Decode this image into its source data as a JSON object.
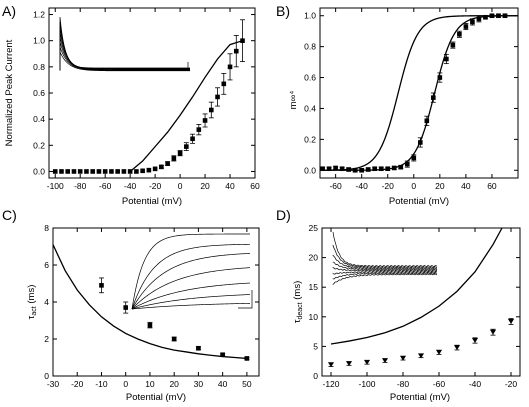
{
  "chart_data": [
    {
      "panel_label": "A)",
      "type": "scatter",
      "xlabel": "Potential (mV)",
      "ylabel": "Normalized Peak Current",
      "xlim": [
        -105,
        60
      ],
      "ylim": [
        -0.05,
        1.25
      ],
      "xticks": [
        -100,
        -80,
        -60,
        -40,
        -20,
        0,
        20,
        40,
        60
      ],
      "yticks": [
        0.0,
        0.2,
        0.4,
        0.6,
        0.8,
        1.0,
        1.2
      ],
      "tick_labels_x": [
        "-100",
        "-80",
        "-60",
        "-40",
        "-20",
        "0",
        "20",
        "40",
        "60"
      ],
      "tick_labels_y": [
        "0.0",
        "0.2",
        "0.4",
        "0.6",
        "0.8",
        "1.0",
        "1.2"
      ],
      "series": [
        {
          "marker": "square",
          "x": [
            -100,
            -95,
            -90,
            -85,
            -80,
            -75,
            -70,
            -65,
            -60,
            -55,
            -50,
            -45,
            -40,
            -35,
            -30,
            -25,
            -20,
            -15,
            -10,
            -5,
            0,
            5,
            10,
            15,
            20,
            25,
            30,
            35,
            40,
            45,
            50
          ],
          "y": [
            0,
            0,
            0,
            0,
            0,
            0,
            0,
            0,
            0,
            0,
            0,
            0,
            0,
            0,
            0.005,
            0.01,
            0.02,
            0.035,
            0.06,
            0.1,
            0.14,
            0.19,
            0.25,
            0.32,
            0.39,
            0.47,
            0.57,
            0.67,
            0.8,
            0.92,
            1.0
          ],
          "err": [
            0,
            0,
            0,
            0,
            0,
            0,
            0,
            0,
            0,
            0,
            0,
            0,
            0,
            0,
            0,
            0,
            0,
            0.01,
            0.015,
            0.02,
            0.02,
            0.03,
            0.035,
            0.04,
            0.05,
            0.06,
            0.07,
            0.08,
            0.1,
            0.12,
            0.16
          ]
        },
        {
          "style": "line",
          "x": [
            -40,
            -30,
            -20,
            -10,
            0,
            10,
            20,
            30,
            40,
            50
          ],
          "y": [
            0,
            0.08,
            0.19,
            0.3,
            0.43,
            0.57,
            0.72,
            0.86,
            0.97,
            1.0
          ]
        }
      ]
    },
    {
      "panel_label": "B)",
      "type": "scatter",
      "xlabel": "Potential (mV)",
      "ylabel": "m∞⁴",
      "xlim": [
        -72,
        80
      ],
      "ylim": [
        -0.05,
        1.05
      ],
      "xticks": [
        -60,
        -40,
        -20,
        0,
        20,
        40,
        60
      ],
      "yticks": [
        0.0,
        0.2,
        0.4,
        0.6,
        0.8,
        1.0
      ],
      "tick_labels_x": [
        "-60",
        "-40",
        "-20",
        "0",
        "20",
        "40",
        "60"
      ],
      "tick_labels_y": [
        "0.0",
        "0.2",
        "0.4",
        "0.6",
        "0.8",
        "1.0"
      ],
      "series": [
        {
          "marker": "square",
          "x": [
            -70,
            -65,
            -60,
            -55,
            -50,
            -45,
            -40,
            -35,
            -30,
            -25,
            -20,
            -15,
            -10,
            -5,
            0,
            5,
            10,
            15,
            20,
            25,
            30,
            35,
            40,
            45,
            50,
            55,
            60,
            65,
            70
          ],
          "y": [
            0.01,
            0.01,
            0.015,
            0.01,
            0.005,
            0.0,
            0.0,
            0.005,
            0.01,
            0.01,
            0.01,
            0.015,
            0.02,
            0.04,
            0.08,
            0.18,
            0.32,
            0.47,
            0.6,
            0.72,
            0.81,
            0.88,
            0.93,
            0.96,
            0.98,
            0.99,
            1.0,
            1.0,
            1.0
          ],
          "err": [
            0.01,
            0.01,
            0.01,
            0.01,
            0.01,
            0.01,
            0.01,
            0.01,
            0.01,
            0.01,
            0.01,
            0.01,
            0.01,
            0.02,
            0.02,
            0.03,
            0.03,
            0.03,
            0.03,
            0.03,
            0.02,
            0.02,
            0.02,
            0.02,
            0.02,
            0.01,
            0.01,
            0.01,
            0.01
          ]
        },
        {
          "style": "line",
          "midpoint": -12,
          "slope": 7.5,
          "x_from": -72,
          "x_to": 80
        },
        {
          "style": "line",
          "midpoint": 16,
          "slope": 7.5,
          "x_from": -72,
          "x_to": 80
        }
      ]
    },
    {
      "panel_label": "C)",
      "type": "scatter",
      "xlabel": "Potential (mV)",
      "ylabel": "τact (ms)",
      "ylabel_main": "τ",
      "ylabel_sub": "act",
      "ylabel_unit": " (ms)",
      "xlim": [
        -30,
        55
      ],
      "ylim": [
        0,
        8
      ],
      "xticks": [
        -30,
        -20,
        -10,
        0,
        10,
        20,
        30,
        40,
        50
      ],
      "yticks": [
        0,
        2,
        4,
        6,
        8
      ],
      "tick_labels_x": [
        "-30",
        "-20",
        "-10",
        "0",
        "10",
        "20",
        "30",
        "40",
        "50"
      ],
      "tick_labels_y": [
        "0",
        "2",
        "4",
        "6",
        "8"
      ],
      "series": [
        {
          "marker": "square",
          "x": [
            -10,
            0,
            10,
            20,
            30,
            40,
            50
          ],
          "y": [
            4.9,
            3.7,
            2.75,
            2.0,
            1.5,
            1.15,
            0.95
          ],
          "err": [
            0.4,
            0.3,
            0.15,
            0.1,
            0.08,
            0.06,
            0.05
          ]
        },
        {
          "style": "line",
          "x": [
            -30,
            -25,
            -20,
            -15,
            -10,
            -5,
            0,
            5,
            10,
            15,
            20,
            25,
            30,
            35,
            40,
            45,
            50
          ],
          "y": [
            7.1,
            5.7,
            4.65,
            3.85,
            3.2,
            2.7,
            2.3,
            2.0,
            1.75,
            1.55,
            1.4,
            1.3,
            1.2,
            1.12,
            1.05,
            1.0,
            0.95
          ]
        }
      ]
    },
    {
      "panel_label": "D)",
      "type": "scatter",
      "xlabel": "Potential (mV)",
      "ylabel": "τdeact (ms)",
      "ylabel_main": "τ",
      "ylabel_sub": "deact",
      "ylabel_unit": " (ms)",
      "xlim": [
        -125,
        -15
      ],
      "ylim": [
        0,
        25
      ],
      "xticks": [
        -120,
        -100,
        -80,
        -60,
        -40,
        -20
      ],
      "yticks": [
        0,
        5,
        10,
        15,
        20,
        25
      ],
      "tick_labels_x": [
        "-120",
        "-100",
        "-80",
        "-60",
        "-40",
        "-20"
      ],
      "tick_labels_y": [
        "0",
        "5",
        "10",
        "15",
        "20",
        "25"
      ],
      "series": [
        {
          "marker": "triangle-down",
          "x": [
            -120,
            -110,
            -100,
            -90,
            -80,
            -70,
            -60,
            -50,
            -40,
            -30,
            -20
          ],
          "y": [
            1.9,
            2.1,
            2.3,
            2.6,
            3.0,
            3.4,
            4.0,
            4.8,
            6.0,
            7.4,
            9.2
          ],
          "err": [
            0.3,
            0.3,
            0.3,
            0.3,
            0.3,
            0.3,
            0.35,
            0.4,
            0.45,
            0.5,
            0.5
          ]
        },
        {
          "style": "line",
          "x": [
            -120,
            -110,
            -100,
            -90,
            -80,
            -70,
            -60,
            -50,
            -40,
            -30,
            -25
          ],
          "y": [
            5.4,
            5.9,
            6.5,
            7.3,
            8.4,
            9.9,
            11.8,
            14.3,
            17.6,
            22.2,
            25.0
          ]
        }
      ]
    }
  ]
}
